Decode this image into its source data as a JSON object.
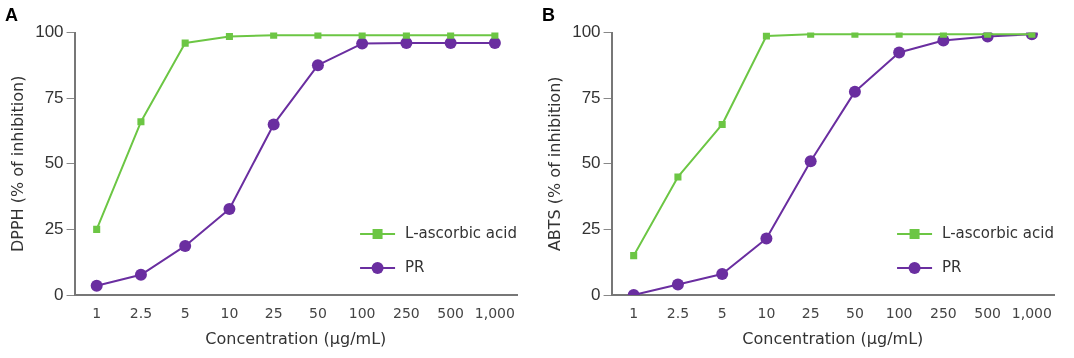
{
  "chart_data": [
    {
      "type": "line",
      "title": "A",
      "xlabel": "Concentration (μg/mL)",
      "ylabel": "DPPH (% of inhibition)",
      "categories": [
        "1",
        "2.5",
        "5",
        "10",
        "25",
        "50",
        "100",
        "250",
        "500",
        "1,000"
      ],
      "ylim": [
        0,
        100
      ],
      "yticks": [
        0,
        25,
        50,
        75,
        100
      ],
      "grid": false,
      "legend": "bottom right",
      "series": [
        {
          "name": "L-ascorbic acid",
          "color": "#6cc644",
          "marker": "square",
          "values": [
            25,
            66,
            96,
            98.5,
            99,
            99,
            99,
            99,
            99,
            99
          ]
        },
        {
          "name": "PR",
          "color": "#6a2ea0",
          "marker": "circle",
          "values": [
            3.5,
            7.7,
            18.7,
            32.8,
            65,
            87.6,
            95.8,
            96,
            96,
            96
          ]
        }
      ]
    },
    {
      "type": "line",
      "title": "B",
      "xlabel": "Concentration (μg/mL)",
      "ylabel": "ABTS (% of inhibition)",
      "categories": [
        "1",
        "2.5",
        "5",
        "10",
        "25",
        "50",
        "100",
        "250",
        "500",
        "1,000"
      ],
      "ylim": [
        0,
        100
      ],
      "yticks": [
        0,
        25,
        50,
        75,
        100
      ],
      "grid": false,
      "legend": "bottom right",
      "series": [
        {
          "name": "L-ascorbic acid",
          "color": "#6cc644",
          "marker": "square",
          "values": [
            15,
            45,
            65,
            98.7,
            99.4,
            99.4,
            99.4,
            99.4,
            99.4,
            99.4
          ]
        },
        {
          "name": "PR",
          "color": "#6a2ea0",
          "marker": "circle",
          "values": [
            0,
            4,
            8,
            21.5,
            51,
            77.5,
            92.4,
            97,
            98.5,
            99.4
          ]
        }
      ]
    }
  ]
}
